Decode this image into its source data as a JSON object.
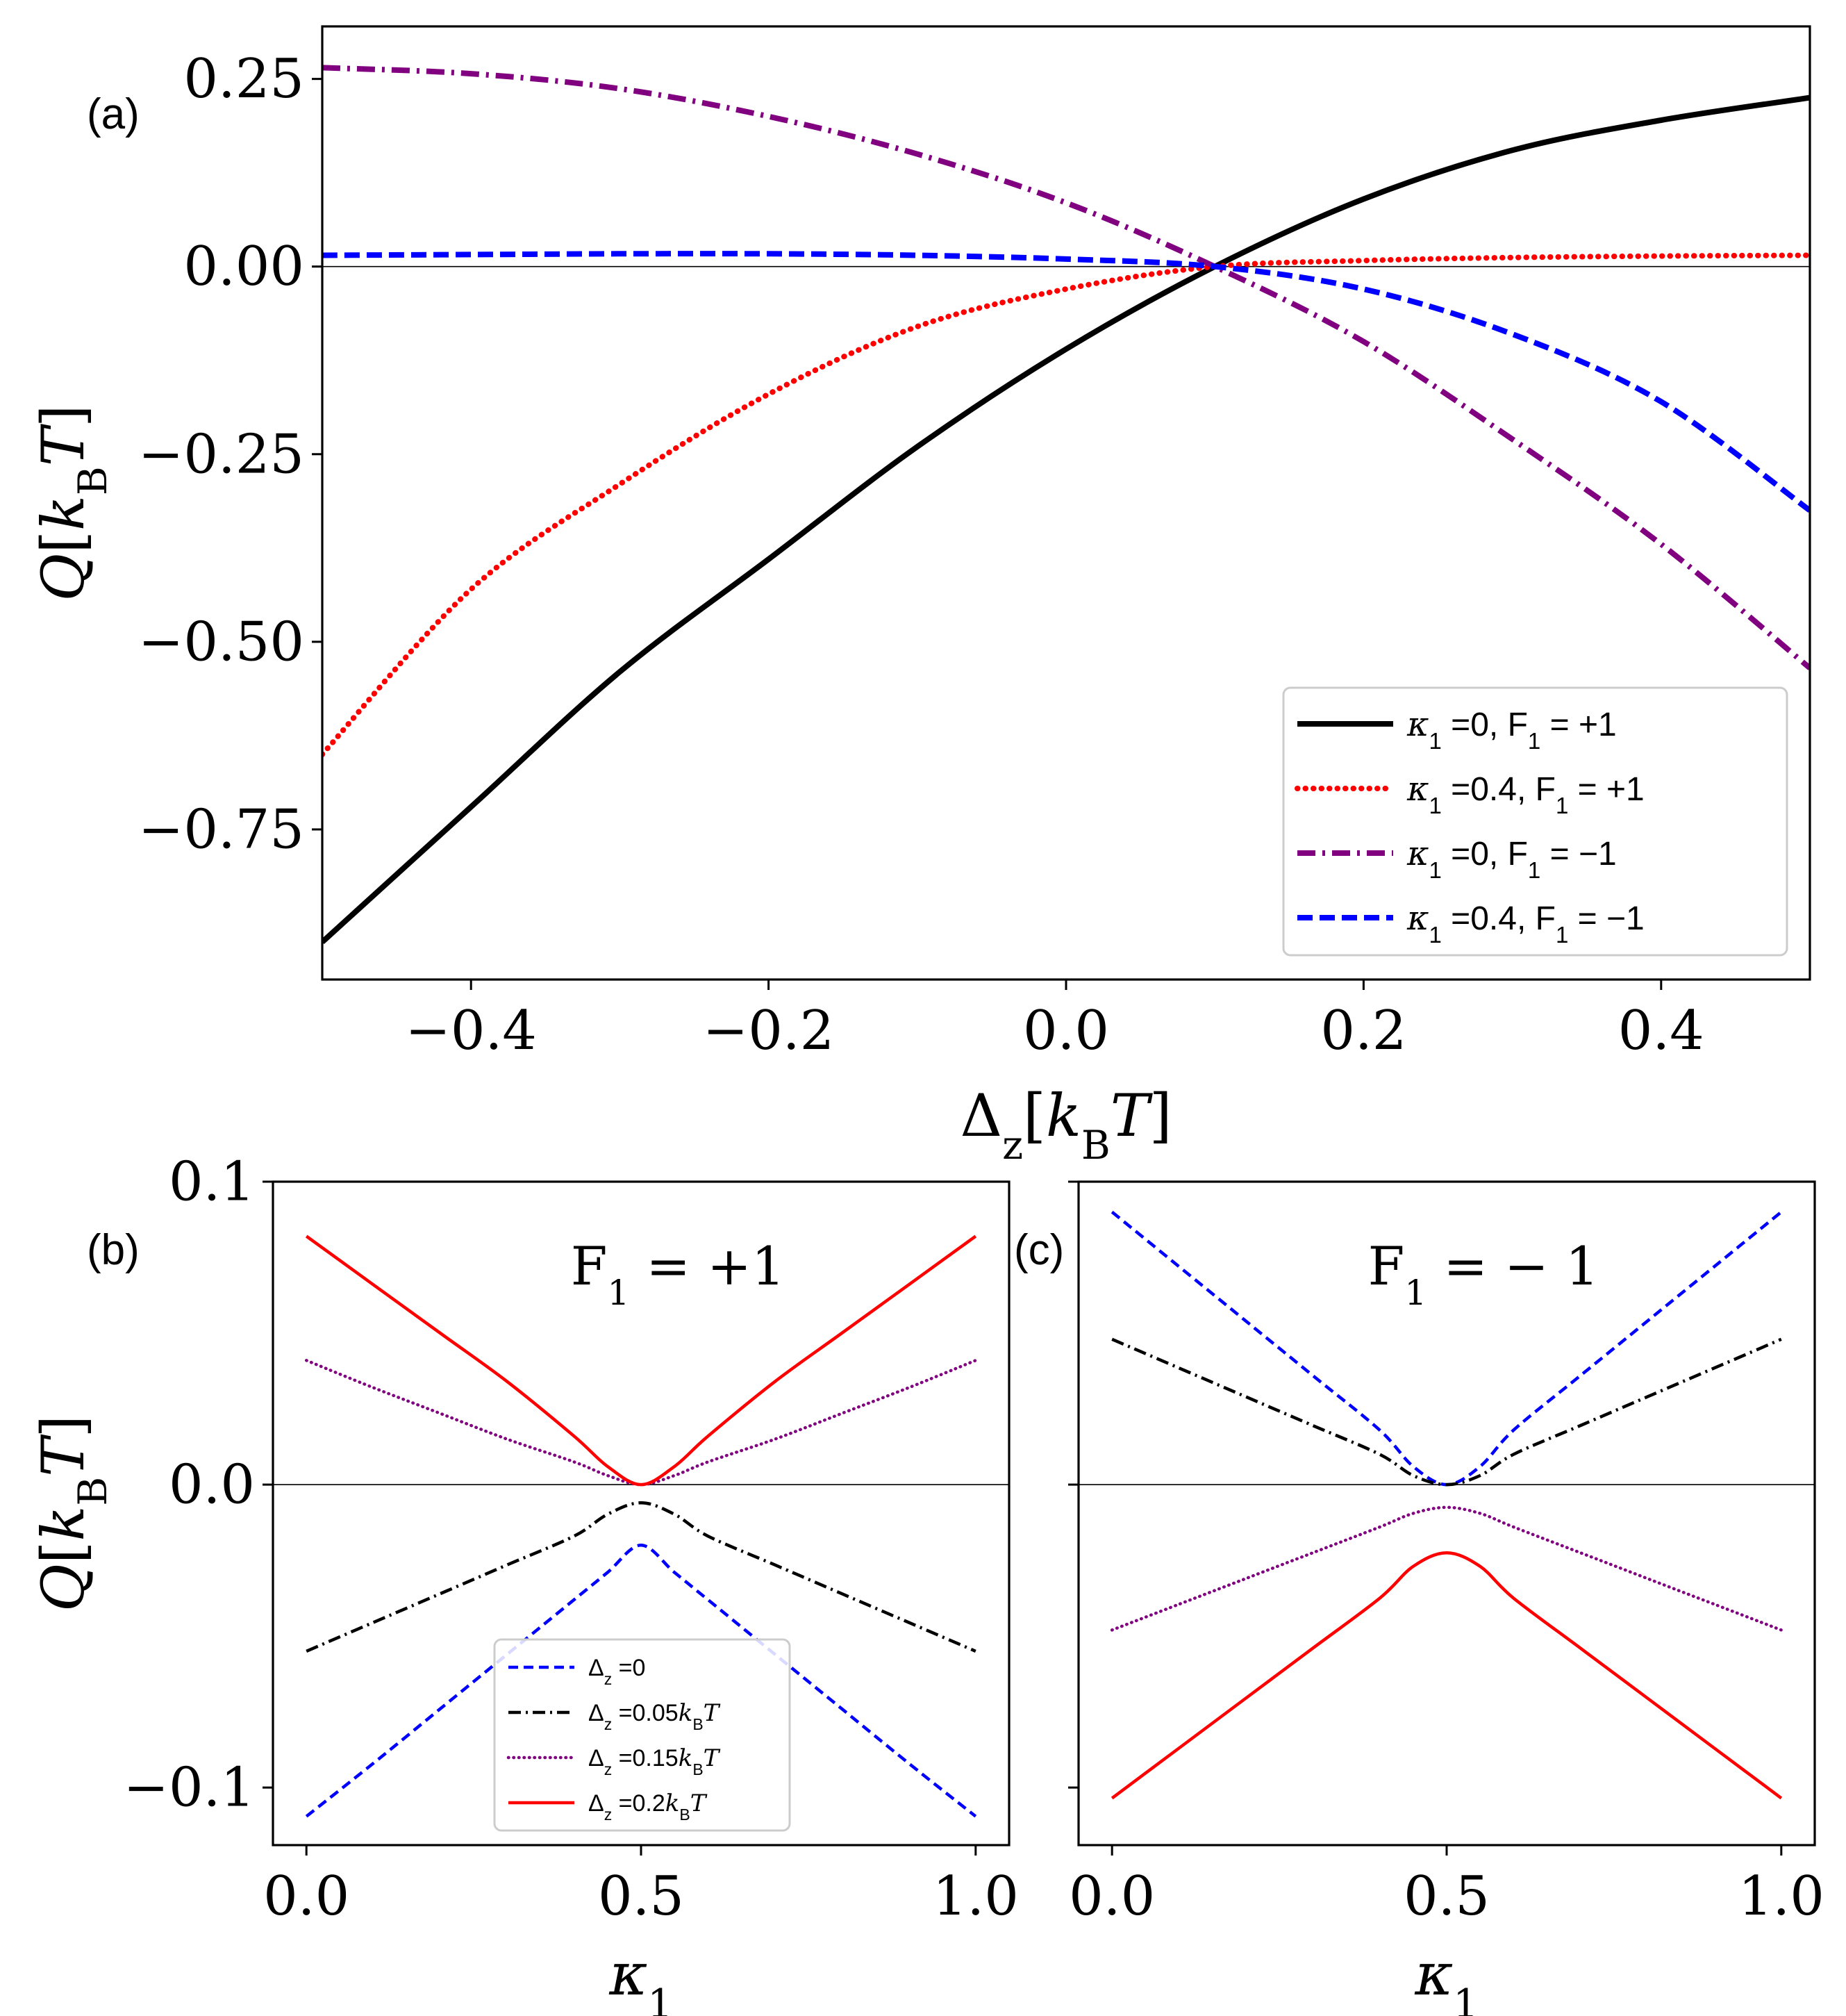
{
  "figure": {
    "panel_labels": [
      "(a)",
      "(b)",
      "(c)"
    ]
  },
  "chart_data": [
    {
      "id": "a",
      "type": "line",
      "panel_label": "(a)",
      "title": "",
      "xlabel": "Δz[kBT]",
      "ylabel": "Q[kBT]",
      "xlim": [
        -0.5,
        0.5
      ],
      "ylim": [
        -0.95,
        0.32
      ],
      "xticks": [
        -0.4,
        -0.2,
        0.0,
        0.2,
        0.4
      ],
      "xtick_labels": [
        "−0.4",
        "−0.2",
        "0.0",
        "0.2",
        "0.4"
      ],
      "yticks": [
        0.25,
        0.0,
        -0.25,
        -0.5,
        -0.75
      ],
      "ytick_labels": [
        "0.25",
        "0.00",
        "−0.25",
        "−0.50",
        "−0.75"
      ],
      "zero_line": true,
      "legend_position": "lower-right",
      "x": [
        -0.5,
        -0.4,
        -0.3,
        -0.2,
        -0.1,
        0.0,
        0.1,
        0.2,
        0.3,
        0.4,
        0.5
      ],
      "series": [
        {
          "name": "κ1 =0, F1 = +1",
          "style": "solid",
          "color": "#000000",
          "values": [
            -0.9,
            -0.72,
            -0.54,
            -0.39,
            -0.24,
            -0.11,
            0.0,
            0.09,
            0.155,
            0.195,
            0.225
          ]
        },
        {
          "name": "κ1 =0.4, F1 = +1",
          "style": "dotted",
          "color": "#ff0000",
          "values": [
            -0.65,
            -0.43,
            -0.29,
            -0.17,
            -0.08,
            -0.03,
            0.0,
            0.008,
            0.012,
            0.014,
            0.015
          ]
        },
        {
          "name": "κ1 =0, F1 = −1",
          "style": "dashdot",
          "color": "#800080",
          "values": [
            0.265,
            0.257,
            0.237,
            0.2,
            0.15,
            0.085,
            0.0,
            -0.1,
            -0.23,
            -0.37,
            -0.535
          ]
        },
        {
          "name": "κ1 =0.4, F1 = −1",
          "style": "dashed",
          "color": "#0000ff",
          "values": [
            0.015,
            0.016,
            0.017,
            0.017,
            0.015,
            0.01,
            0.0,
            -0.03,
            -0.09,
            -0.18,
            -0.325
          ]
        }
      ]
    },
    {
      "id": "b",
      "type": "line",
      "panel_label": "(b)",
      "title": "F1 = +1",
      "xlabel": "κ1",
      "ylabel": "Q[kBT]",
      "xlim": [
        -0.05,
        1.05
      ],
      "ylim": [
        -0.119,
        0.1
      ],
      "xticks": [
        0.0,
        0.5,
        1.0
      ],
      "xtick_labels": [
        "0.0",
        "0.5",
        "1.0"
      ],
      "yticks": [
        0.1,
        0.0,
        -0.1
      ],
      "ytick_labels": [
        "0.1",
        "0.0",
        "−0.1"
      ],
      "zero_line": true,
      "legend_position": "lower-center",
      "x": [
        0.0,
        0.1,
        0.2,
        0.3,
        0.4,
        0.45,
        0.5,
        0.55,
        0.6,
        0.7,
        0.8,
        0.9,
        1.0
      ],
      "series": [
        {
          "name": "Δz =0",
          "style": "dashed",
          "color": "#0000ff",
          "values": [
            -0.1095,
            -0.092,
            -0.074,
            -0.056,
            -0.038,
            -0.029,
            -0.02,
            -0.029,
            -0.038,
            -0.056,
            -0.074,
            -0.092,
            -0.1095
          ]
        },
        {
          "name": "Δz =0.05kBT",
          "style": "dashdot",
          "color": "#000000",
          "values": [
            -0.055,
            -0.0455,
            -0.036,
            -0.0265,
            -0.017,
            -0.0098,
            -0.006,
            -0.0098,
            -0.017,
            -0.0265,
            -0.036,
            -0.0455,
            -0.055
          ]
        },
        {
          "name": "Δz =0.15kBT",
          "style": "dotted",
          "color": "#800080",
          "values": [
            0.041,
            0.032,
            0.0235,
            0.015,
            0.0075,
            0.003,
            0.0,
            0.003,
            0.0075,
            0.015,
            0.0235,
            0.032,
            0.041
          ]
        },
        {
          "name": "Δz =0.2kBT",
          "style": "solid",
          "color": "#ff0000",
          "values": [
            0.082,
            0.066,
            0.05,
            0.034,
            0.016,
            0.006,
            0.0,
            0.006,
            0.016,
            0.034,
            0.05,
            0.066,
            0.082
          ]
        }
      ]
    },
    {
      "id": "c",
      "type": "line",
      "panel_label": "(c)",
      "title": "F1 = − 1",
      "xlabel": "κ1",
      "ylabel": "",
      "xlim": [
        -0.05,
        1.05
      ],
      "ylim": [
        -0.119,
        0.1
      ],
      "xticks": [
        0.0,
        0.5,
        1.0
      ],
      "xtick_labels": [
        "0.0",
        "0.5",
        "1.0"
      ],
      "yticks": [
        0.1,
        0.0,
        -0.1
      ],
      "ytick_labels": [],
      "zero_line": true,
      "legend_position": "",
      "x": [
        0.0,
        0.1,
        0.2,
        0.3,
        0.4,
        0.45,
        0.5,
        0.55,
        0.6,
        0.7,
        0.8,
        0.9,
        1.0
      ],
      "series": [
        {
          "name": "Δz =0",
          "style": "dashed",
          "color": "#0000ff",
          "values": [
            0.09,
            0.072,
            0.054,
            0.036,
            0.018,
            0.006,
            0.0,
            0.006,
            0.018,
            0.036,
            0.054,
            0.072,
            0.09
          ]
        },
        {
          "name": "Δz =0.05kBT",
          "style": "dashdot",
          "color": "#000000",
          "values": [
            0.048,
            0.0385,
            0.029,
            0.0195,
            0.01,
            0.003,
            0.0,
            0.003,
            0.01,
            0.0195,
            0.029,
            0.0385,
            0.048
          ]
        },
        {
          "name": "Δz =0.15kBT",
          "style": "dotted",
          "color": "#800080",
          "values": [
            -0.048,
            -0.0395,
            -0.031,
            -0.0225,
            -0.014,
            -0.0095,
            -0.0075,
            -0.0095,
            -0.014,
            -0.0225,
            -0.031,
            -0.0395,
            -0.048
          ]
        },
        {
          "name": "Δz =0.2kBT",
          "style": "solid",
          "color": "#ff0000",
          "values": [
            -0.1035,
            -0.087,
            -0.0705,
            -0.054,
            -0.0375,
            -0.027,
            -0.0225,
            -0.027,
            -0.0375,
            -0.054,
            -0.0705,
            -0.087,
            -0.1035
          ]
        }
      ]
    }
  ]
}
